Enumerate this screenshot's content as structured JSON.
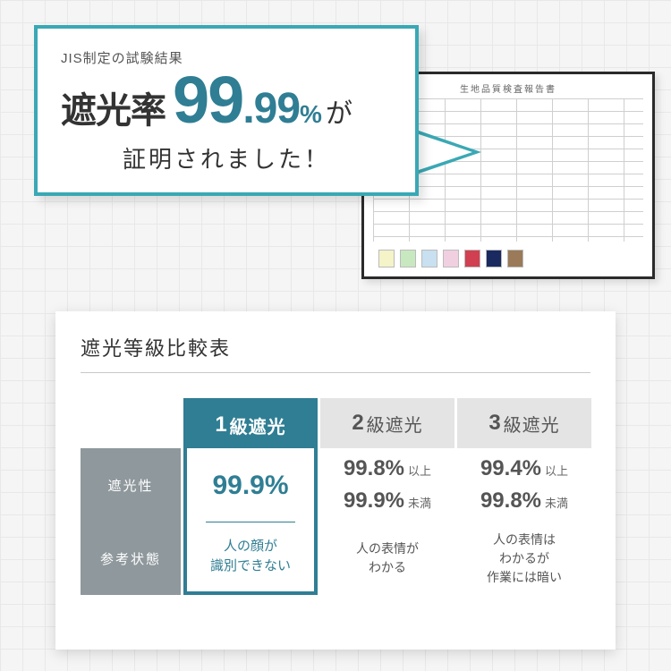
{
  "callout": {
    "subtitle": "JIS制定の試験結果",
    "label": "遮光率",
    "value_int": "99",
    "value_dec": ".99",
    "unit": "%",
    "suffix": "が",
    "line2": "証明されました！",
    "border_color": "#3aa8b5",
    "accent_color": "#2f7e94"
  },
  "certificate": {
    "title": "生地品質検査報告書",
    "swatch_colors": [
      "#f5f3c8",
      "#c8e8c0",
      "#c8e0f0",
      "#f0d0e0",
      "#d04050",
      "#1a2a60",
      "#9a7a58"
    ]
  },
  "comparison": {
    "title": "遮光等級比較表",
    "row_labels": [
      "遮光性",
      "参考状態"
    ],
    "columns": [
      {
        "head_num": "1",
        "head_text": "級遮光",
        "primary": true,
        "pct_main": "99.9%",
        "desc": "人の顔が\n識別できない"
      },
      {
        "head_num": "2",
        "head_text": "級遮光",
        "primary": false,
        "pct_lines": [
          {
            "value": "99.8%",
            "tag": "以上"
          },
          {
            "value": "99.9%",
            "tag": "未満"
          }
        ],
        "desc": "人の表情が\nわかる"
      },
      {
        "head_num": "3",
        "head_text": "級遮光",
        "primary": false,
        "pct_lines": [
          {
            "value": "99.4%",
            "tag": "以上"
          },
          {
            "value": "99.8%",
            "tag": "未満"
          }
        ],
        "desc": "人の表情は\nわかるが\n作業には暗い"
      }
    ]
  },
  "colors": {
    "grid_bg": "#f5f5f5",
    "grid_line": "#e8e8e8",
    "rowlabel_bg": "#8f989c",
    "secondary_head_bg": "#e4e4e4",
    "primary": "#2f7e94"
  }
}
